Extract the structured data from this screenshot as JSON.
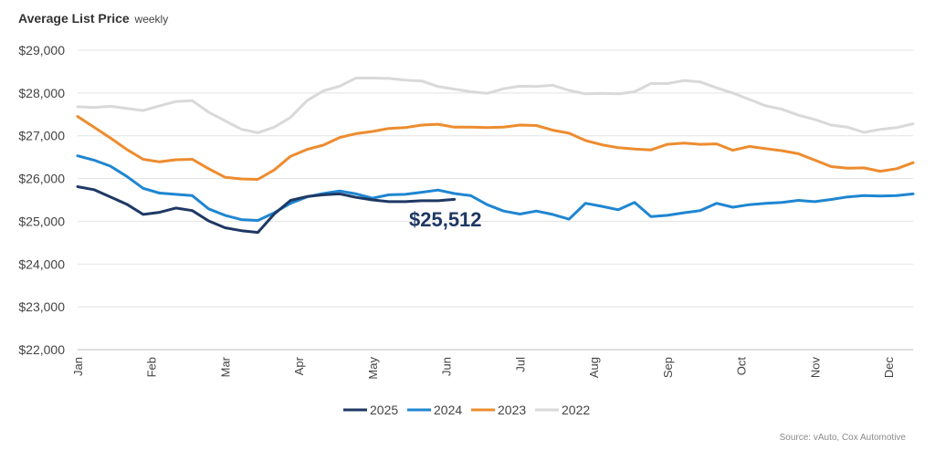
{
  "header": {
    "title": "Average List Price",
    "subtitle": "weekly"
  },
  "source": "Source: vAuto, Cox Automotive",
  "annotation": {
    "text": "$25,512",
    "color": "#1f3864"
  },
  "chart_data": {
    "type": "line",
    "title": "Average List Price",
    "subtitle": "weekly",
    "xlabel": "",
    "ylabel": "",
    "ylim": [
      22000,
      29000
    ],
    "yticks": [
      22000,
      23000,
      24000,
      25000,
      26000,
      27000,
      28000,
      29000
    ],
    "ytick_labels": [
      "$22,000",
      "$23,000",
      "$24,000",
      "$25,000",
      "$26,000",
      "$27,000",
      "$28,000",
      "$29,000"
    ],
    "xlim": [
      1,
      52
    ],
    "months": [
      {
        "label": "Jan",
        "week": 1
      },
      {
        "label": "Feb",
        "week": 5.5
      },
      {
        "label": "Mar",
        "week": 10
      },
      {
        "label": "Apr",
        "week": 14.5
      },
      {
        "label": "May",
        "week": 19
      },
      {
        "label": "Jun",
        "week": 23.5
      },
      {
        "label": "Jul",
        "week": 28
      },
      {
        "label": "Aug",
        "week": 32.5
      },
      {
        "label": "Sep",
        "week": 37
      },
      {
        "label": "Oct",
        "week": 41.5
      },
      {
        "label": "Nov",
        "week": 46
      },
      {
        "label": "Dec",
        "week": 50.5
      }
    ],
    "grid": true,
    "legend_position": "bottom",
    "series": [
      {
        "name": "2022",
        "color": "#d9d9d9",
        "values": [
          27680,
          27660,
          27690,
          27640,
          27590,
          27700,
          27800,
          27820,
          27550,
          27350,
          27150,
          27070,
          27200,
          27430,
          27820,
          28050,
          28160,
          28350,
          28350,
          28340,
          28300,
          28280,
          28150,
          28090,
          28030,
          27990,
          28100,
          28160,
          28150,
          28180,
          28060,
          27980,
          27990,
          27980,
          28030,
          28220,
          28220,
          28290,
          28260,
          28120,
          28000,
          27850,
          27700,
          27620,
          27480,
          27380,
          27250,
          27200,
          27080,
          27150,
          27190,
          27280
        ]
      },
      {
        "name": "2023",
        "color": "#ed8c2f",
        "values": [
          27450,
          27200,
          26950,
          26680,
          26450,
          26390,
          26440,
          26450,
          26230,
          26030,
          25990,
          25980,
          26200,
          26520,
          26680,
          26780,
          26960,
          27050,
          27100,
          27170,
          27190,
          27250,
          27270,
          27200,
          27200,
          27190,
          27200,
          27250,
          27240,
          27130,
          27060,
          26890,
          26790,
          26720,
          26690,
          26670,
          26800,
          26830,
          26800,
          26810,
          26660,
          26750,
          26700,
          26650,
          26580,
          26430,
          26280,
          26240,
          26250,
          26170,
          26230,
          26370
        ]
      },
      {
        "name": "2024",
        "color": "#1f86d1",
        "values": [
          26530,
          26430,
          26290,
          26050,
          25770,
          25660,
          25630,
          25600,
          25290,
          25140,
          25040,
          25020,
          25200,
          25420,
          25570,
          25650,
          25710,
          25640,
          25540,
          25620,
          25630,
          25680,
          25730,
          25650,
          25600,
          25390,
          25240,
          25170,
          25240,
          25160,
          25050,
          25420,
          25350,
          25270,
          25440,
          25110,
          25140,
          25200,
          25250,
          25420,
          25330,
          25390,
          25420,
          25440,
          25490,
          25460,
          25510,
          25570,
          25600,
          25590,
          25600,
          25640
        ]
      },
      {
        "name": "2025",
        "color": "#1f3864",
        "values": [
          25810,
          25740,
          25570,
          25400,
          25160,
          25210,
          25310,
          25250,
          25010,
          24850,
          24780,
          24740,
          25170,
          25490,
          25580,
          25620,
          25640,
          25560,
          25500,
          25460,
          25460,
          25480,
          25480,
          25512
        ]
      }
    ]
  }
}
